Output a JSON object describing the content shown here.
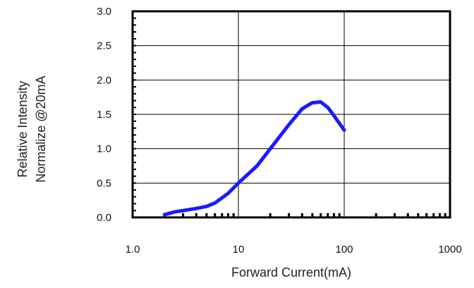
{
  "chart_data": {
    "type": "line",
    "xscale": "log",
    "xlim": [
      1,
      1000
    ],
    "ylim": [
      0,
      3.0
    ],
    "grid": true,
    "xlabel": "Forward Current(mA)",
    "ylabel_lines": [
      "Relative Intensity",
      "Normalize @20mA"
    ],
    "x_ticks": [
      1,
      10,
      100,
      1000
    ],
    "x_tick_labels": [
      "1.0",
      "10",
      "100",
      "1000"
    ],
    "y_ticks": [
      0,
      0.5,
      1.0,
      1.5,
      2.0,
      2.5,
      3.0
    ],
    "y_tick_labels": [
      "0.0",
      "0.5",
      "1.0",
      "1.5",
      "2.0",
      "2.5",
      "3.0"
    ],
    "series": [
      {
        "color": "#1a1aff",
        "x": [
          2,
          2.5,
          3,
          4,
          5,
          6,
          8,
          10,
          15,
          20,
          30,
          40,
          50,
          60,
          70,
          80,
          100
        ],
        "y": [
          0.04,
          0.08,
          0.1,
          0.13,
          0.16,
          0.21,
          0.35,
          0.5,
          0.75,
          1.0,
          1.35,
          1.58,
          1.67,
          1.68,
          1.6,
          1.48,
          1.27
        ]
      }
    ]
  }
}
